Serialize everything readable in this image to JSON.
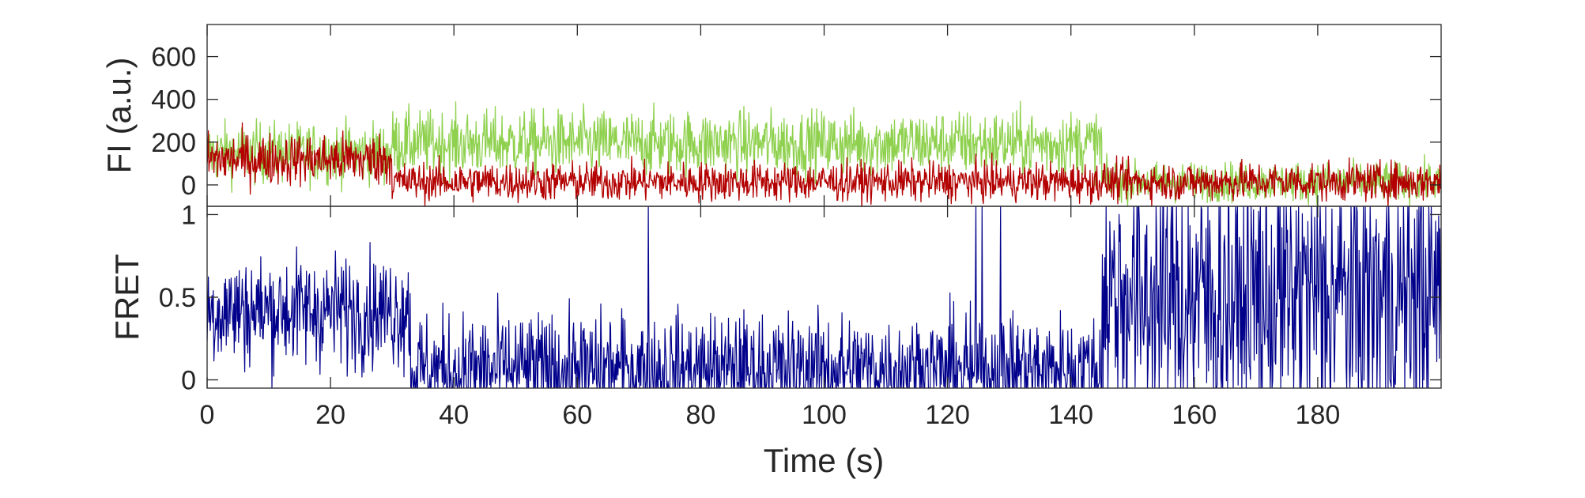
{
  "chart_data": [
    {
      "type": "line",
      "panel": "intensity",
      "ylabel": "FI (a.u.)",
      "xlim": [
        0,
        200
      ],
      "ylim": [
        -100,
        750
      ],
      "yticks": [
        0,
        200,
        400,
        600
      ],
      "grid": false,
      "series": [
        {
          "role": "acceptor",
          "color": "#8fd14f",
          "segments": [
            {
              "x": [
                0,
                30
              ],
              "mean": 150,
              "noise": 70
            },
            {
              "x": [
                30,
                145
              ],
              "mean": 195,
              "noise": 75
            },
            {
              "x": [
                145,
                200
              ],
              "mean": 15,
              "noise": 45
            }
          ]
        },
        {
          "role": "donor",
          "color": "#b30000",
          "segments": [
            {
              "x": [
                0,
                30
              ],
              "mean": 120,
              "noise": 60
            },
            {
              "x": [
                30,
                145
              ],
              "mean": 15,
              "noise": 45
            },
            {
              "x": [
                145,
                200
              ],
              "mean": 15,
              "noise": 45
            }
          ]
        }
      ]
    },
    {
      "type": "line",
      "panel": "fret",
      "xlabel": "Time (s)",
      "ylabel": "FRET",
      "xlim": [
        0,
        200
      ],
      "ylim": [
        -0.05,
        1.05
      ],
      "xticks": [
        0,
        20,
        40,
        60,
        80,
        100,
        120,
        140,
        160,
        180
      ],
      "yticks": [
        0,
        0.5,
        1
      ],
      "ytick_labels": [
        "0",
        "0.5",
        "1"
      ],
      "grid": false,
      "series": [
        {
          "role": "fret",
          "color": "#00008b",
          "segments": [
            {
              "x": [
                0,
                33
              ],
              "mean": 0.42,
              "noise": 0.17
            },
            {
              "x": [
                33,
                145
              ],
              "mean": 0.06,
              "noise": 0.17
            },
            {
              "x": [
                145,
                200
              ],
              "mean": 0.5,
              "noise": 0.45
            }
          ],
          "spikes_to_max_at": [
            71.5,
            124.5,
            125.5,
            128.5
          ]
        }
      ]
    }
  ]
}
